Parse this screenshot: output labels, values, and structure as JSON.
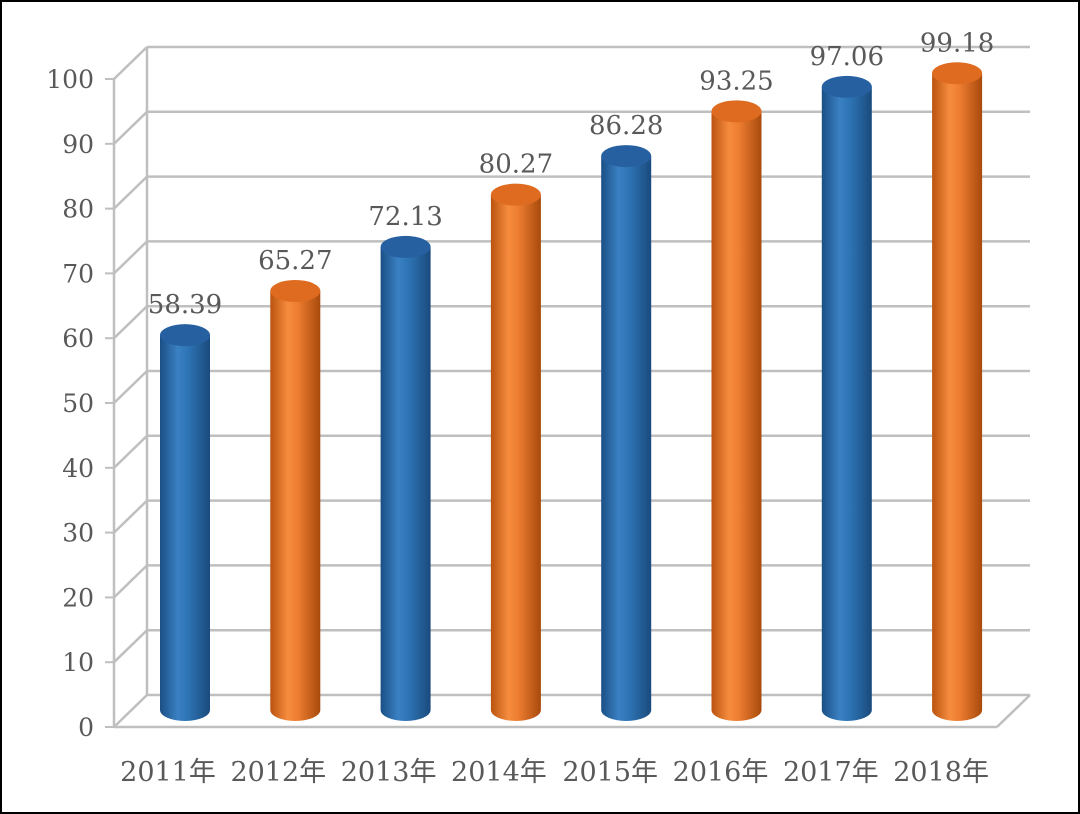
{
  "chart_data": {
    "type": "bar",
    "style": "3d-cylinder",
    "title": "",
    "xlabel": "",
    "ylabel": "",
    "categories": [
      "2011年",
      "2012年",
      "2013年",
      "2014年",
      "2015年",
      "2016年",
      "2017年",
      "2018年"
    ],
    "values": [
      58.39,
      65.27,
      72.13,
      80.27,
      86.28,
      93.25,
      97.06,
      99.18
    ],
    "data_labels": [
      "58.39",
      "65.27",
      "72.13",
      "80.27",
      "86.28",
      "93.25",
      "97.06",
      "99.18"
    ],
    "bar_colors": [
      "#2e75b6",
      "#ed7d31",
      "#2e75b6",
      "#ed7d31",
      "#2e75b6",
      "#ed7d31",
      "#2e75b6",
      "#ed7d31"
    ],
    "ylim": [
      0,
      100
    ],
    "yticks": [
      "0",
      "10",
      "20",
      "30",
      "40",
      "50",
      "60",
      "70",
      "80",
      "90",
      "100"
    ],
    "grid": true,
    "legend": "none"
  }
}
